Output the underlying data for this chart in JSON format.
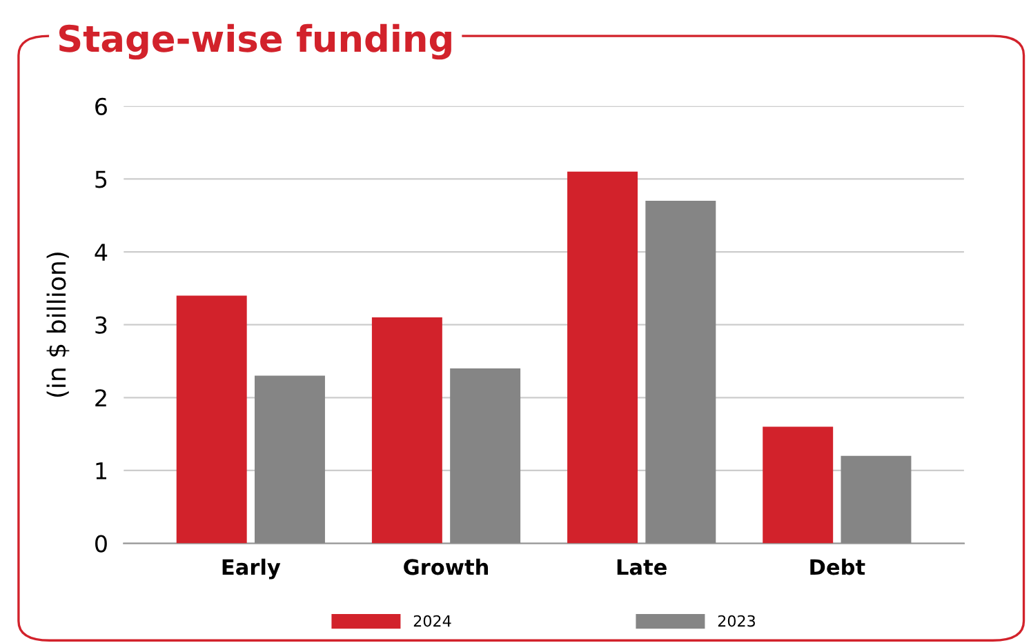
{
  "chart_data": {
    "type": "bar",
    "title": "Stage-wise funding",
    "ylabel": "(in $ billion)",
    "categories": [
      "Early",
      "Growth",
      "Late",
      "Debt"
    ],
    "series": [
      {
        "name": "2024",
        "color": "#d2222b",
        "values": [
          3.4,
          3.1,
          5.1,
          1.6
        ]
      },
      {
        "name": "2023",
        "color": "#858585",
        "values": [
          2.3,
          2.4,
          4.7,
          1.2
        ]
      }
    ],
    "ylim": [
      0,
      6
    ],
    "yticks": [
      0,
      1,
      2,
      3,
      4,
      5,
      6
    ],
    "grid": "y",
    "legend": "bottom"
  }
}
